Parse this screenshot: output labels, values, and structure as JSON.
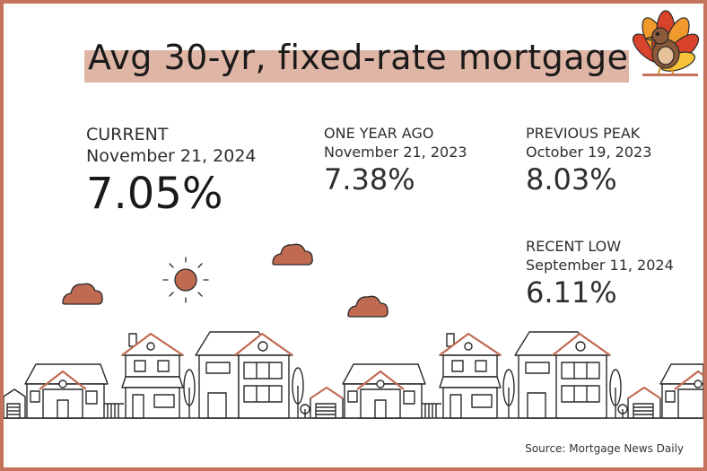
{
  "title": "Avg 30-yr, fixed-rate mortgage",
  "current": {
    "label": "CURRENT",
    "date": "November 21, 2024",
    "rate": "7.05%"
  },
  "year_ago": {
    "label": "ONE YEAR AGO",
    "date": "November 21, 2023",
    "rate": "7.38%"
  },
  "previous_peak": {
    "label": "PREVIOUS PEAK",
    "date": "October 19, 2023",
    "rate": "8.03%"
  },
  "recent_low": {
    "label": "RECENT LOW",
    "date": "September 11, 2024",
    "rate": "6.11%"
  },
  "source": "Source: Mortgage News Daily",
  "colors": {
    "accent": "#c4735c",
    "title_highlight": "#dfb5a6",
    "cloud": "#c06a52",
    "sun": "#c06a52",
    "line_art": "#2a2a2a"
  }
}
